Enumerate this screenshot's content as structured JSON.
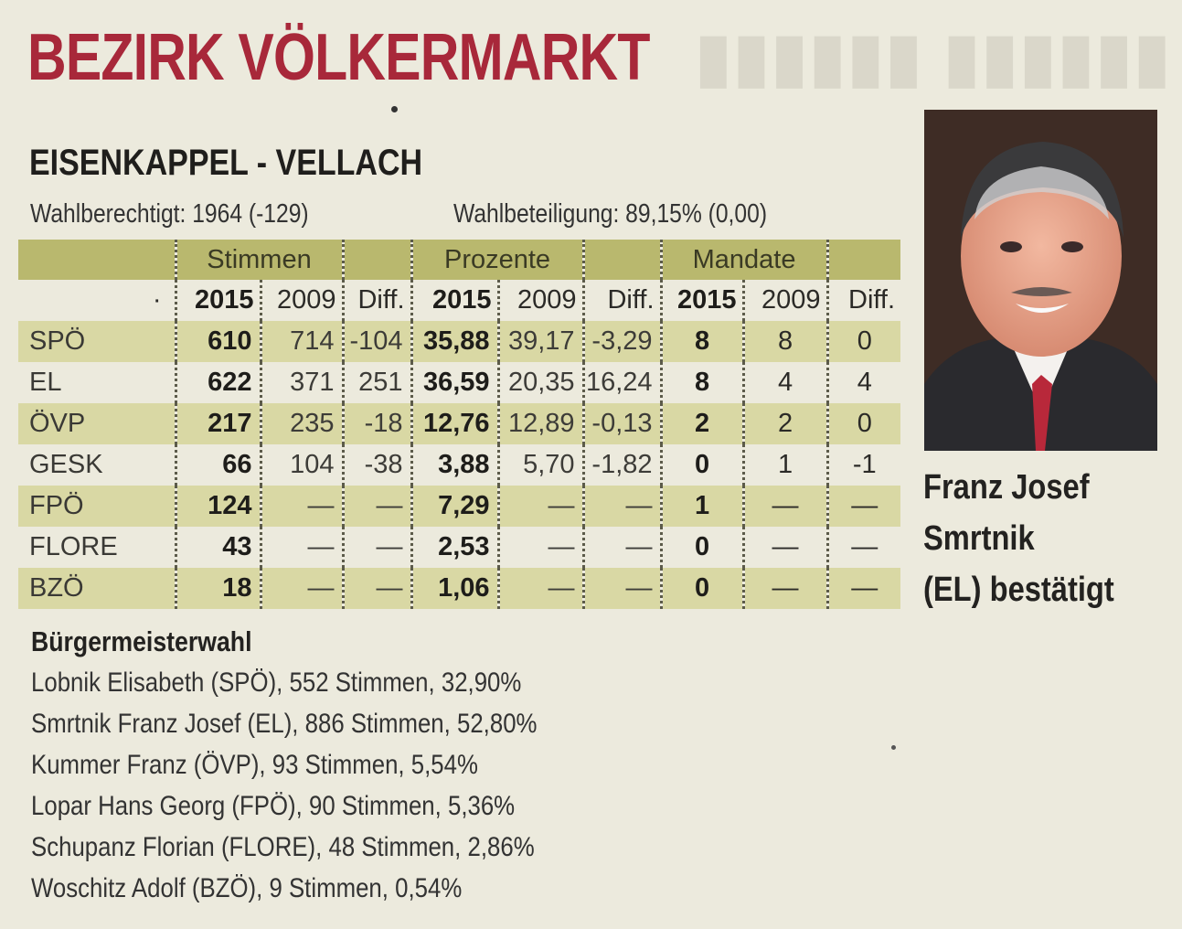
{
  "header": {
    "title": "BEZIRK VÖLKERMARKT",
    "municipality": "EISENKAPPEL - VELLACH",
    "eligible": "Wahlberechtigt: 1964 (-129)",
    "turnout": "Wahlbeteiligung: 89,15% (0,00)"
  },
  "table": {
    "groups": [
      "Stimmen",
      "Prozente",
      "Mandate"
    ],
    "years": [
      "2015",
      "2009",
      "Diff."
    ],
    "rows": [
      {
        "party": "SPÖ",
        "stimmen": [
          "610",
          "714",
          "-104"
        ],
        "prozente": [
          "35,88",
          "39,17",
          "-3,29"
        ],
        "mandate": [
          "8",
          "8",
          "0"
        ]
      },
      {
        "party": "EL",
        "stimmen": [
          "622",
          "371",
          "251"
        ],
        "prozente": [
          "36,59",
          "20,35",
          "16,24"
        ],
        "mandate": [
          "8",
          "4",
          "4"
        ]
      },
      {
        "party": "ÖVP",
        "stimmen": [
          "217",
          "235",
          "-18"
        ],
        "prozente": [
          "12,76",
          "12,89",
          "-0,13"
        ],
        "mandate": [
          "2",
          "2",
          "0"
        ]
      },
      {
        "party": "GESK",
        "stimmen": [
          "66",
          "104",
          "-38"
        ],
        "prozente": [
          "3,88",
          "5,70",
          "-1,82"
        ],
        "mandate": [
          "0",
          "1",
          "-1"
        ]
      },
      {
        "party": "FPÖ",
        "stimmen": [
          "124",
          "—",
          "—"
        ],
        "prozente": [
          "7,29",
          "—",
          "—"
        ],
        "mandate": [
          "1",
          "—",
          "—"
        ]
      },
      {
        "party": "FLORE",
        "stimmen": [
          "43",
          "—",
          "—"
        ],
        "prozente": [
          "2,53",
          "—",
          "—"
        ],
        "mandate": [
          "0",
          "—",
          "—"
        ]
      },
      {
        "party": "BZÖ",
        "stimmen": [
          "18",
          "—",
          "—"
        ],
        "prozente": [
          "1,06",
          "—",
          "—"
        ],
        "mandate": [
          "0",
          "—",
          "—"
        ]
      }
    ]
  },
  "photo": {
    "caption": [
      "Franz Josef",
      "Smrtnik",
      "(EL) bestätigt"
    ]
  },
  "mayor_election": {
    "heading": "Bürgermeisterwahl",
    "candidates": [
      "Lobnik Elisabeth (SPÖ), 552 Stimmen, 32,90%",
      "Smrtnik Franz Josef (EL), 886 Stimmen, 52,80%",
      "Kummer Franz (ÖVP), 93 Stimmen, 5,54%",
      "Lopar Hans Georg (FPÖ), 90 Stimmen, 5,36%",
      "Schupanz Florian (FLORE), 48 Stimmen, 2,86%",
      "Woschitz Adolf (BZÖ), 9 Stimmen, 0,54%"
    ]
  },
  "colors": {
    "title_red": "#a8283a",
    "header_band": "#b9b86e",
    "row_band": "#d9d8a4",
    "paper": "#eceadd"
  }
}
